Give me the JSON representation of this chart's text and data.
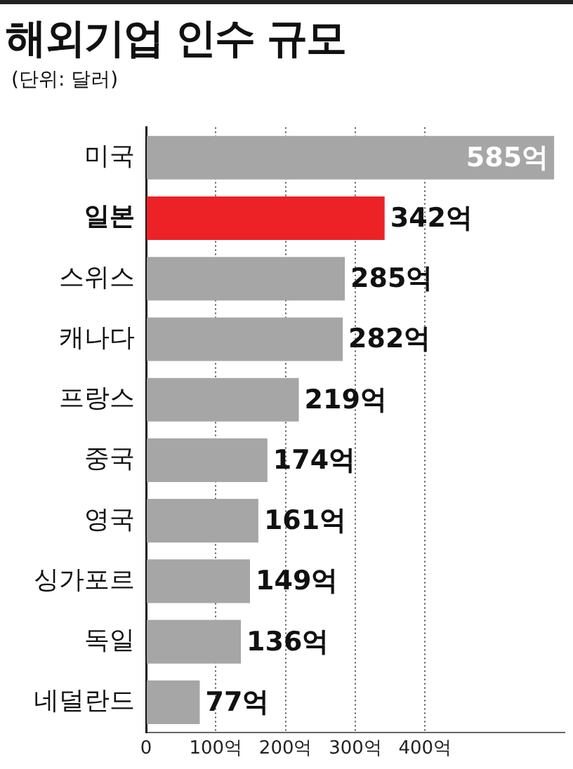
{
  "chart_data": {
    "type": "bar",
    "orientation": "horizontal",
    "title": "해외기업 인수 규모",
    "subtitle": "(단위: 달러)",
    "categories": [
      "미국",
      "일본",
      "스위스",
      "캐나다",
      "프랑스",
      "중국",
      "영국",
      "싱가포르",
      "독일",
      "네덜란드"
    ],
    "values": [
      585,
      342,
      285,
      282,
      219,
      174,
      161,
      149,
      136,
      77
    ],
    "colors": [
      "#a6a6a6",
      "#ec2227",
      "#a6a6a6",
      "#a6a6a6",
      "#a6a6a6",
      "#a6a6a6",
      "#a6a6a6",
      "#a6a6a6",
      "#a6a6a6",
      "#a6a6a6"
    ],
    "value_labels": [
      "585억",
      "342억",
      "285억",
      "282억",
      "219억",
      "174억",
      "161억",
      "149억",
      "136억",
      "77억"
    ],
    "xlim": [
      0,
      600
    ],
    "xticks": [
      0,
      {
        "value": 100,
        "label": "100억"
      },
      {
        "value": 200,
        "label": "200억"
      },
      {
        "value": 300,
        "label": "300억"
      },
      {
        "value": 400,
        "label": "400억"
      }
    ],
    "grid": "x"
  }
}
